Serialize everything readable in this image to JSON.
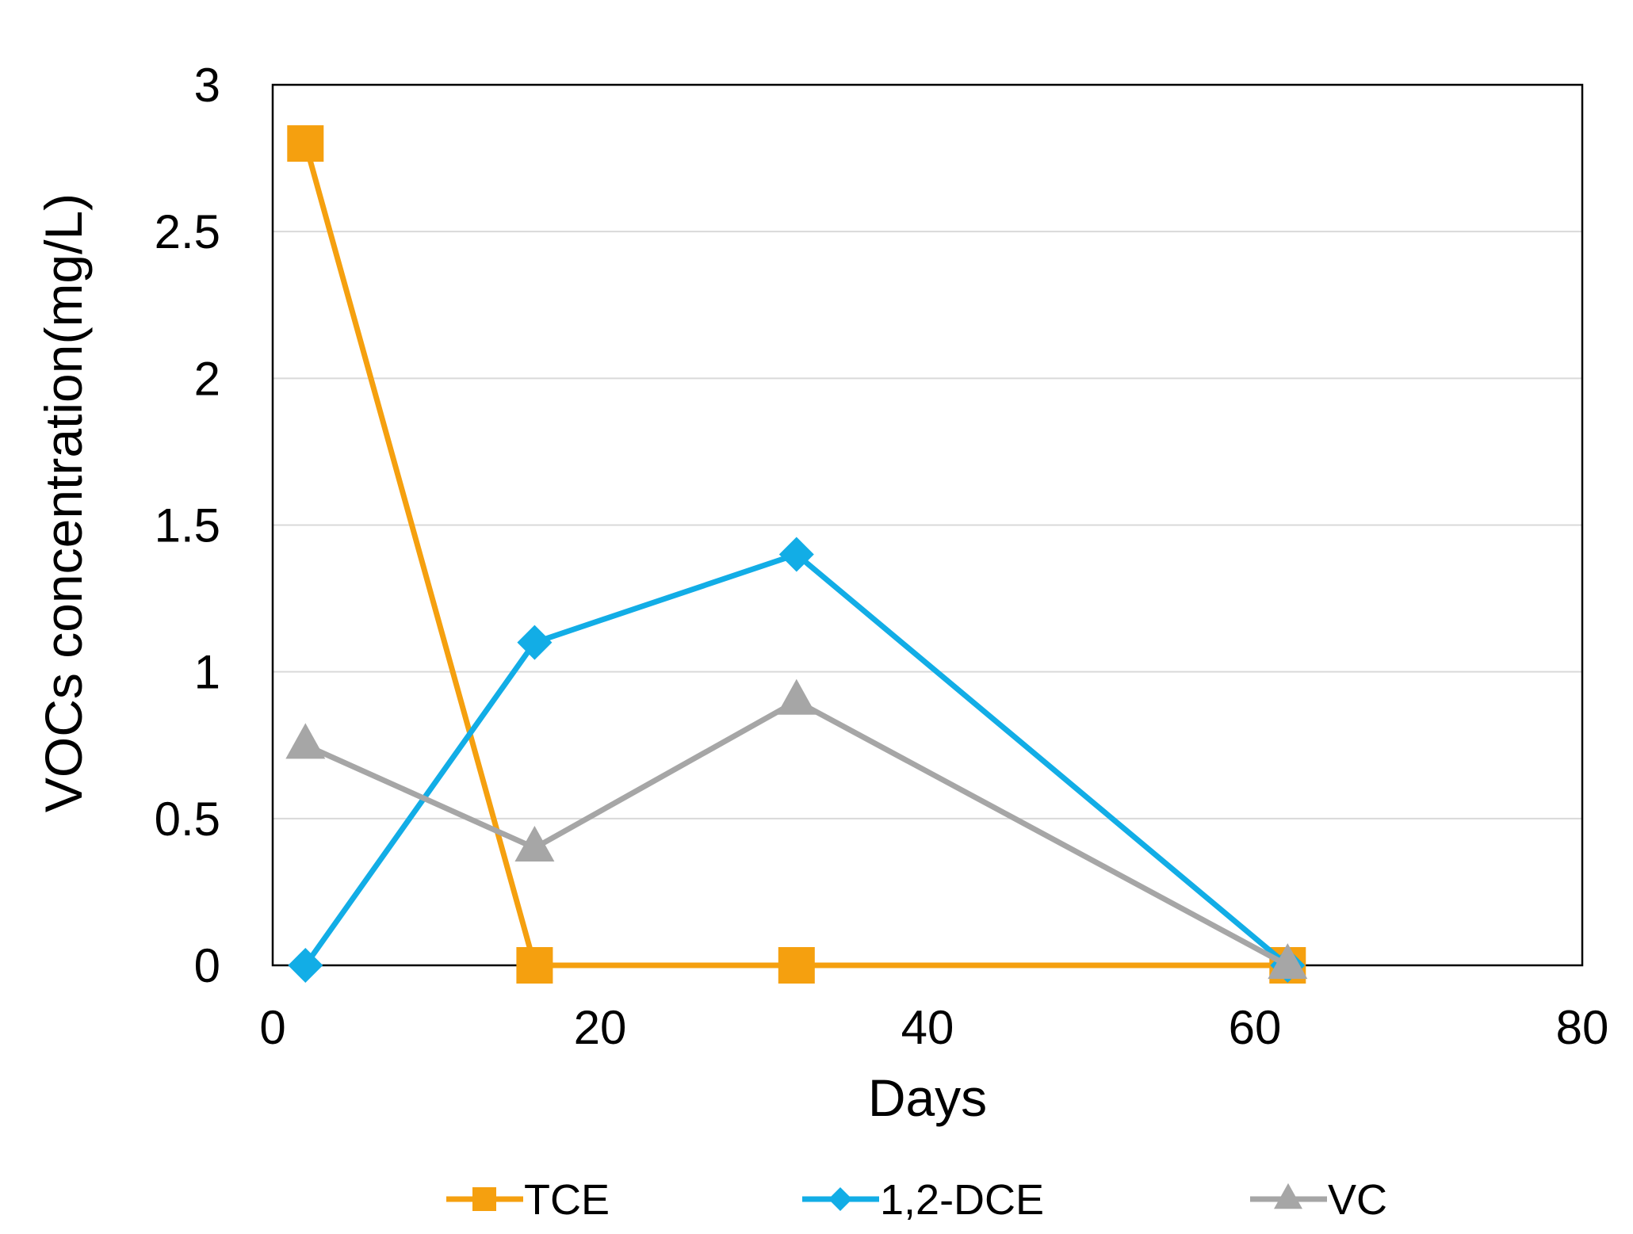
{
  "chart_data": {
    "type": "line",
    "title": "",
    "xlabel": "Days",
    "ylabel": "VOCs concentration(mg/L)",
    "xlim": [
      0,
      80
    ],
    "ylim": [
      0,
      3
    ],
    "x_ticks": [
      "0",
      "20",
      "40",
      "60",
      "80"
    ],
    "y_ticks": [
      "0",
      "0.5",
      "1",
      "1.5",
      "2",
      "2.5",
      "3"
    ],
    "grid": "horizontal",
    "legend_position": "bottom",
    "series": [
      {
        "name": "TCE",
        "color": "#f5a00f",
        "marker": "square",
        "x": [
          2,
          16,
          32,
          62
        ],
        "y": [
          2.8,
          0,
          0,
          0
        ]
      },
      {
        "name": "1,2-DCE",
        "color": "#12ade6",
        "marker": "diamond",
        "x": [
          2,
          16,
          32,
          62
        ],
        "y": [
          0,
          1.1,
          1.4,
          0
        ]
      },
      {
        "name": "VC",
        "color": "#a6a6a6",
        "marker": "triangle",
        "x": [
          2,
          16,
          32,
          62
        ],
        "y": [
          0.75,
          0.4,
          0.9,
          0
        ]
      }
    ]
  }
}
